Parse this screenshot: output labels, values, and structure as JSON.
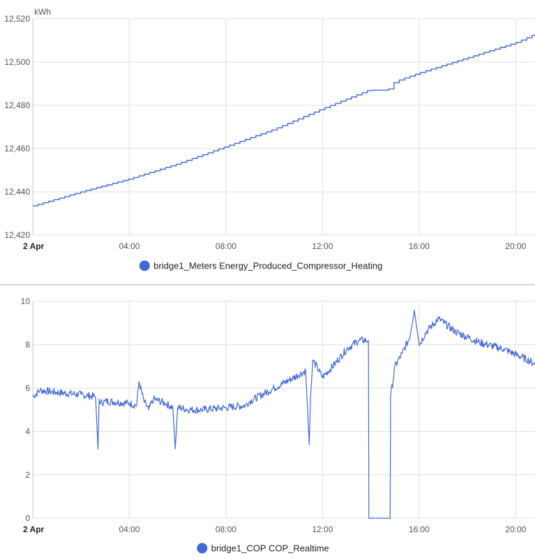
{
  "colors": {
    "series": "#4169d8",
    "grid": "#e0e0e0",
    "background": "#ffffff"
  },
  "chart_data": [
    {
      "type": "line",
      "title": "",
      "ylabel": "kWh",
      "xlabel": "",
      "x_range_hours": [
        0,
        20.8
      ],
      "x_ticks": [
        {
          "hour": 0,
          "label": "2 Apr",
          "bold": true
        },
        {
          "hour": 4,
          "label": "04:00"
        },
        {
          "hour": 8,
          "label": "08:00"
        },
        {
          "hour": 12,
          "label": "12:00"
        },
        {
          "hour": 16,
          "label": "16:00"
        },
        {
          "hour": 20,
          "label": "20:00"
        }
      ],
      "ylim": [
        12420,
        12520
      ],
      "y_ticks": [
        {
          "value": 12420,
          "label": "12,420"
        },
        {
          "value": 12440,
          "label": "12,440"
        },
        {
          "value": 12460,
          "label": "12,460"
        },
        {
          "value": 12480,
          "label": "12,480"
        },
        {
          "value": 12500,
          "label": "12,500"
        },
        {
          "value": 12520,
          "label": "12,520"
        }
      ],
      "grid": true,
      "legend": "bottom-center",
      "step": true,
      "series": [
        {
          "name": "bridge1_Meters Energy_Produced_Compressor_Heating",
          "x": [
            0,
            2,
            4,
            6,
            8,
            10,
            12,
            13.9,
            14.7,
            15,
            16,
            18,
            20,
            20.8
          ],
          "y": [
            12433.5,
            12440,
            12446,
            12453,
            12461,
            12469,
            12478.5,
            12487,
            12487,
            12491,
            12495,
            12502,
            12509,
            12513
          ]
        }
      ]
    },
    {
      "type": "line",
      "title": "",
      "ylabel": "",
      "xlabel": "",
      "x_range_hours": [
        0,
        20.8
      ],
      "x_ticks": [
        {
          "hour": 0,
          "label": "2 Apr",
          "bold": true
        },
        {
          "hour": 4,
          "label": "04:00"
        },
        {
          "hour": 8,
          "label": "08:00"
        },
        {
          "hour": 12,
          "label": "12:00"
        },
        {
          "hour": 16,
          "label": "16:00"
        },
        {
          "hour": 20,
          "label": "20:00"
        }
      ],
      "ylim": [
        0,
        10
      ],
      "y_ticks": [
        {
          "value": 0,
          "label": "0"
        },
        {
          "value": 2,
          "label": "2"
        },
        {
          "value": 4,
          "label": "4"
        },
        {
          "value": 6,
          "label": "6"
        },
        {
          "value": 8,
          "label": "8"
        },
        {
          "value": 10,
          "label": "10"
        }
      ],
      "grid": true,
      "legend": "bottom-center",
      "series": [
        {
          "name": "bridge1_COP COP_Realtime",
          "x": [
            0,
            0.3,
            1,
            2,
            2.6,
            2.7,
            2.75,
            2.8,
            3,
            4,
            4.3,
            4.4,
            4.6,
            4.8,
            5,
            5.5,
            5.8,
            5.9,
            6,
            6.5,
            7,
            8,
            8.8,
            9,
            10,
            11,
            11.3,
            11.45,
            11.5,
            11.6,
            12,
            12.5,
            13,
            13.5,
            13.9,
            13.92,
            14.8,
            14.82,
            15,
            15.3,
            15.6,
            15.8,
            16,
            16.3,
            16.8,
            17.5,
            18.5,
            19.5,
            20.5,
            20.8
          ],
          "y": [
            5.6,
            5.9,
            5.8,
            5.7,
            5.6,
            3.2,
            5.5,
            5.3,
            5.4,
            5.3,
            5.2,
            6.3,
            5.4,
            5.0,
            5.5,
            5.3,
            5.1,
            3.2,
            5.1,
            5.0,
            5.0,
            5.1,
            5.2,
            5.4,
            6.0,
            6.6,
            6.8,
            3.4,
            5.5,
            7.3,
            6.5,
            7.1,
            7.8,
            8.2,
            8.2,
            0,
            0,
            5.6,
            7.0,
            7.6,
            8.3,
            9.6,
            8.0,
            8.6,
            9.2,
            8.6,
            8.1,
            7.8,
            7.3,
            7.1
          ]
        }
      ]
    }
  ]
}
